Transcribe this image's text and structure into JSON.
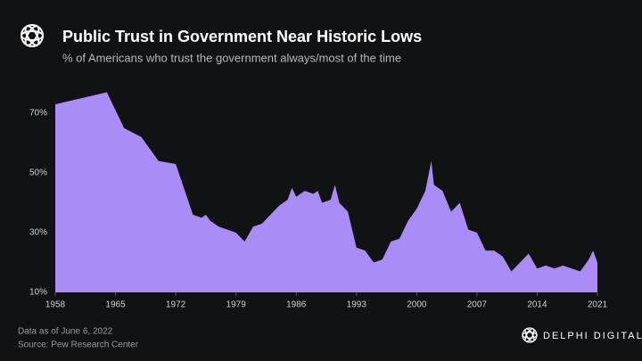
{
  "chart_data": {
    "type": "area",
    "title": "Public Trust in Government Near Historic Lows",
    "subtitle": "% of Americans who trust the government always/most of the time",
    "x": [
      1958,
      1964,
      1966,
      1968,
      1970,
      1972,
      1974,
      1975,
      1975.5,
      1976,
      1977,
      1978,
      1979,
      1980,
      1981,
      1982,
      1984,
      1985,
      1985.5,
      1986,
      1987,
      1988,
      1988.5,
      1989,
      1990,
      1990.5,
      1991,
      1992,
      1993,
      1994,
      1995,
      1996,
      1997,
      1998,
      1999,
      2000,
      2001,
      2001.7,
      2002,
      2003,
      2004,
      2005,
      2006,
      2007,
      2008,
      2009,
      2010,
      2011,
      2012,
      2013,
      2014,
      2015,
      2016,
      2017,
      2018,
      2019,
      2020,
      2020.5,
      2021
    ],
    "values": [
      73,
      77,
      65,
      62,
      54,
      53,
      36,
      35,
      36,
      34,
      32,
      31,
      30,
      27,
      32,
      33,
      39,
      41,
      45,
      42,
      44,
      43,
      44,
      40,
      41,
      46,
      40,
      37,
      25,
      24,
      20,
      21,
      27,
      28,
      34,
      38,
      44,
      54,
      46,
      44,
      37,
      40,
      31,
      30,
      24,
      24,
      22,
      17,
      20,
      23,
      18,
      19,
      18,
      19,
      18,
      17,
      21,
      24,
      20
    ],
    "color": "#a98cf5",
    "xlim": [
      1958,
      2021
    ],
    "xticks": [
      1958,
      1965,
      1972,
      1979,
      1986,
      1993,
      2000,
      2007,
      2014,
      2021
    ],
    "ylim": [
      10,
      80
    ],
    "yticks": [
      {
        "value": 10,
        "label": "10%"
      },
      {
        "value": 30,
        "label": "30%"
      },
      {
        "value": 50,
        "label": "50%"
      },
      {
        "value": 70,
        "label": "70%"
      }
    ],
    "note": "Data as of June 6, 2022",
    "source": "Source: Pew Research Center",
    "brand": "DELPHI DIGITAL"
  }
}
